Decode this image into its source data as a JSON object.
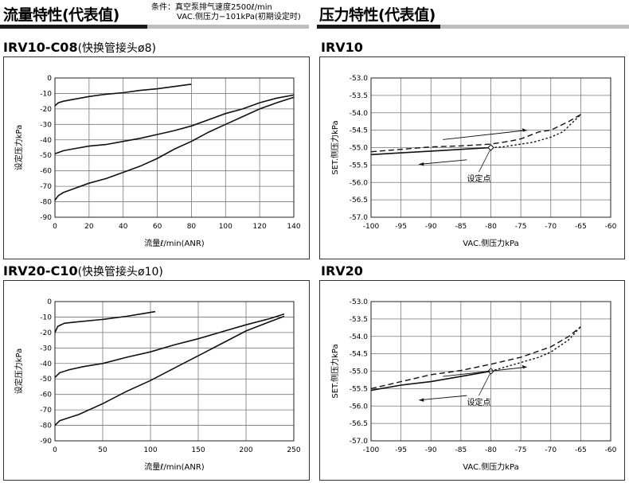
{
  "sections": {
    "left_title": "流量特性(代表值)",
    "right_title": "压力特性(代表值)",
    "conditions_label": "条件：",
    "conditions_line1": "真空泵排气速度2500ℓ/min",
    "conditions_line2": "VAC.侧压力−101kPa(初期设定时)"
  },
  "panels": {
    "p1_title": "IRV10-C08",
    "p1_sub": "(快换管接头ø8)",
    "p2_title": "IRV10",
    "p3_title": "IRV20-C10",
    "p3_sub": "(快换管接头ø10)",
    "p4_title": "IRV20"
  },
  "chart_data": [
    {
      "type": "line",
      "title": "IRV10-C08",
      "xlabel": "流量ℓ/min(ANR)",
      "ylabel": "设定压力kPa",
      "xlim": [
        0,
        140
      ],
      "ylim": [
        -90,
        0
      ],
      "xticks": [
        0,
        20,
        40,
        60,
        80,
        100,
        120,
        140
      ],
      "yticks": [
        0,
        -10,
        -20,
        -30,
        -40,
        -50,
        -60,
        -70,
        -80,
        -90
      ],
      "grid": true,
      "series": [
        {
          "style": "solid",
          "points": [
            [
              0,
              -18
            ],
            [
              2,
              -16
            ],
            [
              5,
              -15
            ],
            [
              10,
              -14
            ],
            [
              20,
              -12
            ],
            [
              30,
              -10.5
            ],
            [
              40,
              -9.5
            ],
            [
              50,
              -8
            ],
            [
              60,
              -7
            ],
            [
              70,
              -5.5
            ],
            [
              80,
              -4
            ]
          ]
        },
        {
          "style": "solid",
          "points": [
            [
              0,
              -49
            ],
            [
              5,
              -47
            ],
            [
              10,
              -46
            ],
            [
              20,
              -44
            ],
            [
              30,
              -43
            ],
            [
              40,
              -41
            ],
            [
              50,
              -39
            ],
            [
              60,
              -36.5
            ],
            [
              70,
              -34
            ],
            [
              80,
              -31
            ],
            [
              90,
              -27
            ],
            [
              100,
              -23
            ],
            [
              110,
              -20
            ],
            [
              120,
              -16
            ],
            [
              130,
              -13
            ],
            [
              140,
              -11
            ]
          ]
        },
        {
          "style": "solid",
          "points": [
            [
              0,
              -79
            ],
            [
              2,
              -76
            ],
            [
              5,
              -74
            ],
            [
              10,
              -72
            ],
            [
              20,
              -68
            ],
            [
              30,
              -65
            ],
            [
              40,
              -61
            ],
            [
              50,
              -57
            ],
            [
              60,
              -52
            ],
            [
              70,
              -46
            ],
            [
              80,
              -41
            ],
            [
              90,
              -35
            ],
            [
              100,
              -30
            ],
            [
              110,
              -25
            ],
            [
              120,
              -20
            ],
            [
              130,
              -16
            ],
            [
              140,
              -12.5
            ]
          ]
        }
      ]
    },
    {
      "type": "line",
      "title": "IRV10",
      "xlabel": "VAC.侧压力kPa",
      "ylabel": "SET.侧压力kPa",
      "xlim": [
        -100,
        -60
      ],
      "ylim": [
        -57.0,
        -53.0
      ],
      "xticks": [
        -100,
        -95,
        -90,
        -85,
        -80,
        -75,
        -70,
        -65,
        -60
      ],
      "yticks": [
        "-53.0",
        "-53.5",
        "-54.0",
        "-54.5",
        "-55.0",
        "-55.5",
        "-56.0",
        "-56.5",
        "-57.0"
      ],
      "grid": true,
      "annotation": "设定点",
      "set_point": [
        -80,
        -55.0
      ],
      "series": [
        {
          "style": "solid",
          "points": [
            [
              -100,
              -55.2
            ],
            [
              -95,
              -55.15
            ],
            [
              -90,
              -55.1
            ],
            [
              -85,
              -55.05
            ],
            [
              -80,
              -55.0
            ]
          ]
        },
        {
          "style": "dotted",
          "points": [
            [
              -80,
              -55.0
            ],
            [
              -78,
              -54.98
            ],
            [
              -75,
              -54.9
            ],
            [
              -73,
              -54.85
            ],
            [
              -70,
              -54.7
            ],
            [
              -68,
              -54.55
            ],
            [
              -65,
              -54.05
            ]
          ]
        },
        {
          "style": "dashed",
          "points": [
            [
              -100,
              -55.12
            ],
            [
              -95,
              -55.05
            ],
            [
              -90,
              -54.98
            ],
            [
              -85,
              -54.95
            ],
            [
              -80,
              -54.9
            ],
            [
              -77,
              -54.82
            ],
            [
              -75,
              -54.75
            ],
            [
              -72,
              -54.55
            ],
            [
              -70,
              -54.5
            ],
            [
              -67,
              -54.25
            ],
            [
              -65,
              -54.05
            ]
          ]
        }
      ]
    },
    {
      "type": "line",
      "title": "IRV20-C10",
      "xlabel": "流量ℓ/min(ANR)",
      "ylabel": "设定压力kPa",
      "xlim": [
        0,
        250
      ],
      "ylim": [
        -90,
        0
      ],
      "xticks": [
        0,
        50,
        100,
        150,
        200,
        250
      ],
      "yticks": [
        0,
        -10,
        -20,
        -30,
        -40,
        -50,
        -60,
        -70,
        -80,
        -90
      ],
      "grid": true,
      "series": [
        {
          "style": "solid",
          "points": [
            [
              0,
              -20
            ],
            [
              3,
              -16
            ],
            [
              10,
              -14
            ],
            [
              25,
              -13
            ],
            [
              50,
              -11.5
            ],
            [
              75,
              -9.5
            ],
            [
              90,
              -8
            ],
            [
              105,
              -6.5
            ]
          ]
        },
        {
          "style": "solid",
          "points": [
            [
              0,
              -49
            ],
            [
              5,
              -46
            ],
            [
              15,
              -44
            ],
            [
              30,
              -42
            ],
            [
              50,
              -40
            ],
            [
              75,
              -36
            ],
            [
              100,
              -32.5
            ],
            [
              125,
              -28
            ],
            [
              150,
              -24
            ],
            [
              175,
              -19.5
            ],
            [
              200,
              -15
            ],
            [
              225,
              -11
            ],
            [
              240,
              -8
            ]
          ]
        },
        {
          "style": "solid",
          "points": [
            [
              0,
              -80
            ],
            [
              5,
              -77
            ],
            [
              15,
              -75
            ],
            [
              25,
              -73
            ],
            [
              50,
              -66
            ],
            [
              75,
              -58
            ],
            [
              100,
              -51
            ],
            [
              125,
              -43
            ],
            [
              150,
              -35
            ],
            [
              175,
              -27
            ],
            [
              200,
              -19
            ],
            [
              225,
              -13
            ],
            [
              240,
              -9.5
            ]
          ]
        }
      ]
    },
    {
      "type": "line",
      "title": "IRV20",
      "xlabel": "VAC.侧压力kPa",
      "ylabel": "SET.侧压力kPa",
      "xlim": [
        -100,
        -60
      ],
      "ylim": [
        -57.0,
        -53.0
      ],
      "xticks": [
        -100,
        -95,
        -90,
        -85,
        -80,
        -75,
        -70,
        -65,
        -60
      ],
      "yticks": [
        "-53.0",
        "-53.5",
        "-54.0",
        "-54.5",
        "-55.0",
        "-55.5",
        "-56.0",
        "-56.5",
        "-57.0"
      ],
      "grid": true,
      "annotation": "设定点",
      "set_point": [
        -80,
        -55.0
      ],
      "series": [
        {
          "style": "solid",
          "points": [
            [
              -100,
              -55.55
            ],
            [
              -95,
              -55.4
            ],
            [
              -90,
              -55.3
            ],
            [
              -85,
              -55.15
            ],
            [
              -80,
              -55.0
            ]
          ]
        },
        {
          "style": "dotted",
          "points": [
            [
              -80,
              -55.0
            ],
            [
              -77,
              -54.85
            ],
            [
              -75,
              -54.75
            ],
            [
              -72,
              -54.6
            ],
            [
              -70,
              -54.45
            ],
            [
              -67,
              -54.1
            ],
            [
              -65,
              -53.72
            ]
          ]
        },
        {
          "style": "dashed",
          "points": [
            [
              -100,
              -55.5
            ],
            [
              -95,
              -55.3
            ],
            [
              -90,
              -55.1
            ],
            [
              -85,
              -54.98
            ],
            [
              -80,
              -54.8
            ],
            [
              -75,
              -54.6
            ],
            [
              -72,
              -54.42
            ],
            [
              -70,
              -54.3
            ],
            [
              -67,
              -54.0
            ],
            [
              -65,
              -53.72
            ]
          ]
        }
      ]
    }
  ]
}
